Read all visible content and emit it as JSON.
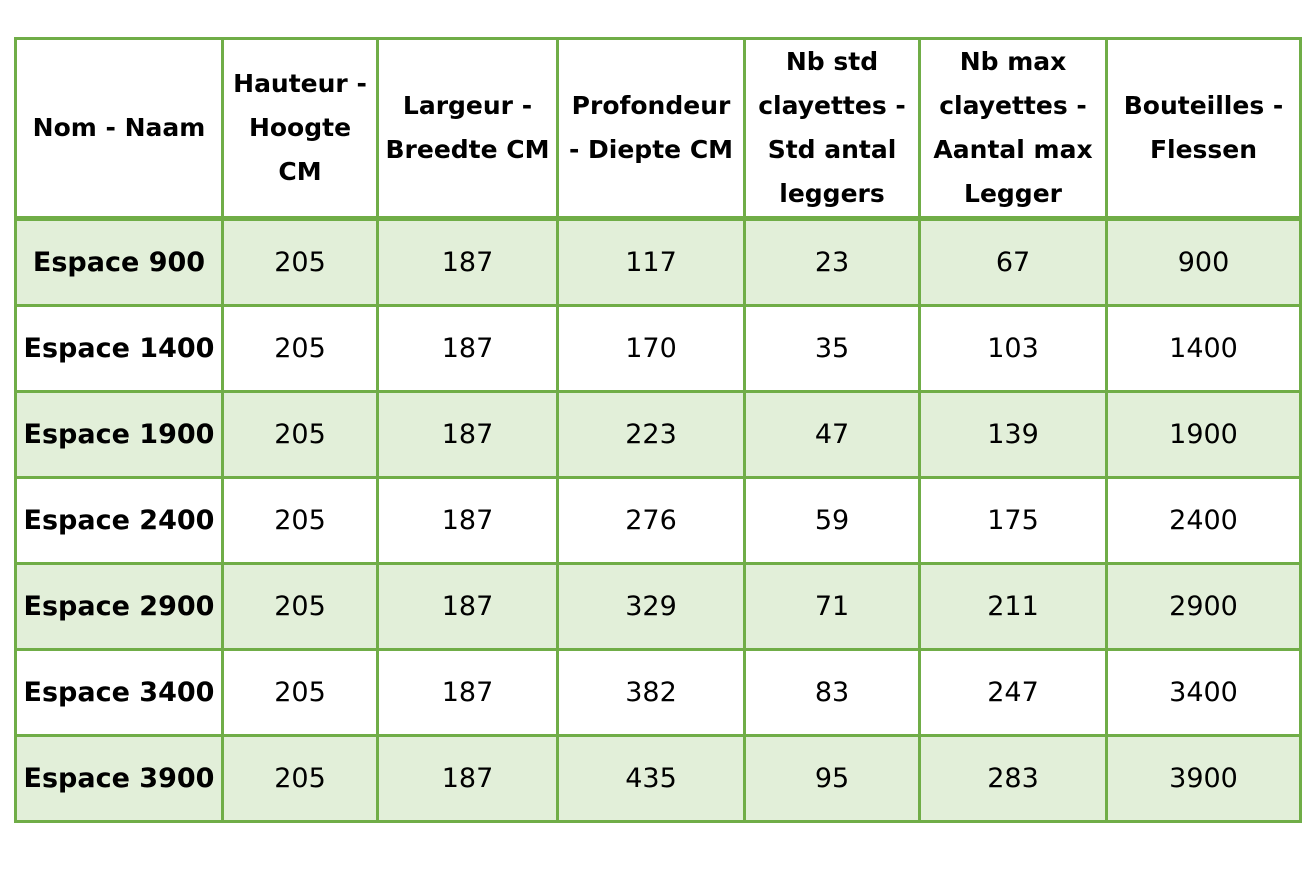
{
  "table": {
    "headers": [
      "Nom - Naam",
      "Hauteur - Hoogte CM",
      "Largeur - Breedte CM",
      "Profondeur - Diepte CM",
      "Nb std clayettes - Std antal leggers",
      "Nb max clayettes - Aantal max Legger",
      "Bouteilles - Flessen"
    ],
    "rows": [
      [
        "Espace 900",
        "205",
        "187",
        "117",
        "23",
        "67",
        "900"
      ],
      [
        "Espace 1400",
        "205",
        "187",
        "170",
        "35",
        "103",
        "1400"
      ],
      [
        "Espace 1900",
        "205",
        "187",
        "223",
        "47",
        "139",
        "1900"
      ],
      [
        "Espace 2400",
        "205",
        "187",
        "276",
        "59",
        "175",
        "2400"
      ],
      [
        "Espace 2900",
        "205",
        "187",
        "329",
        "71",
        "211",
        "2900"
      ],
      [
        "Espace 3400",
        "205",
        "187",
        "382",
        "83",
        "247",
        "3400"
      ],
      [
        "Espace 3900",
        "205",
        "187",
        "435",
        "95",
        "283",
        "3900"
      ]
    ]
  },
  "colors": {
    "border": "#70ad47",
    "band": "#e2efd9",
    "background": "#ffffff"
  }
}
